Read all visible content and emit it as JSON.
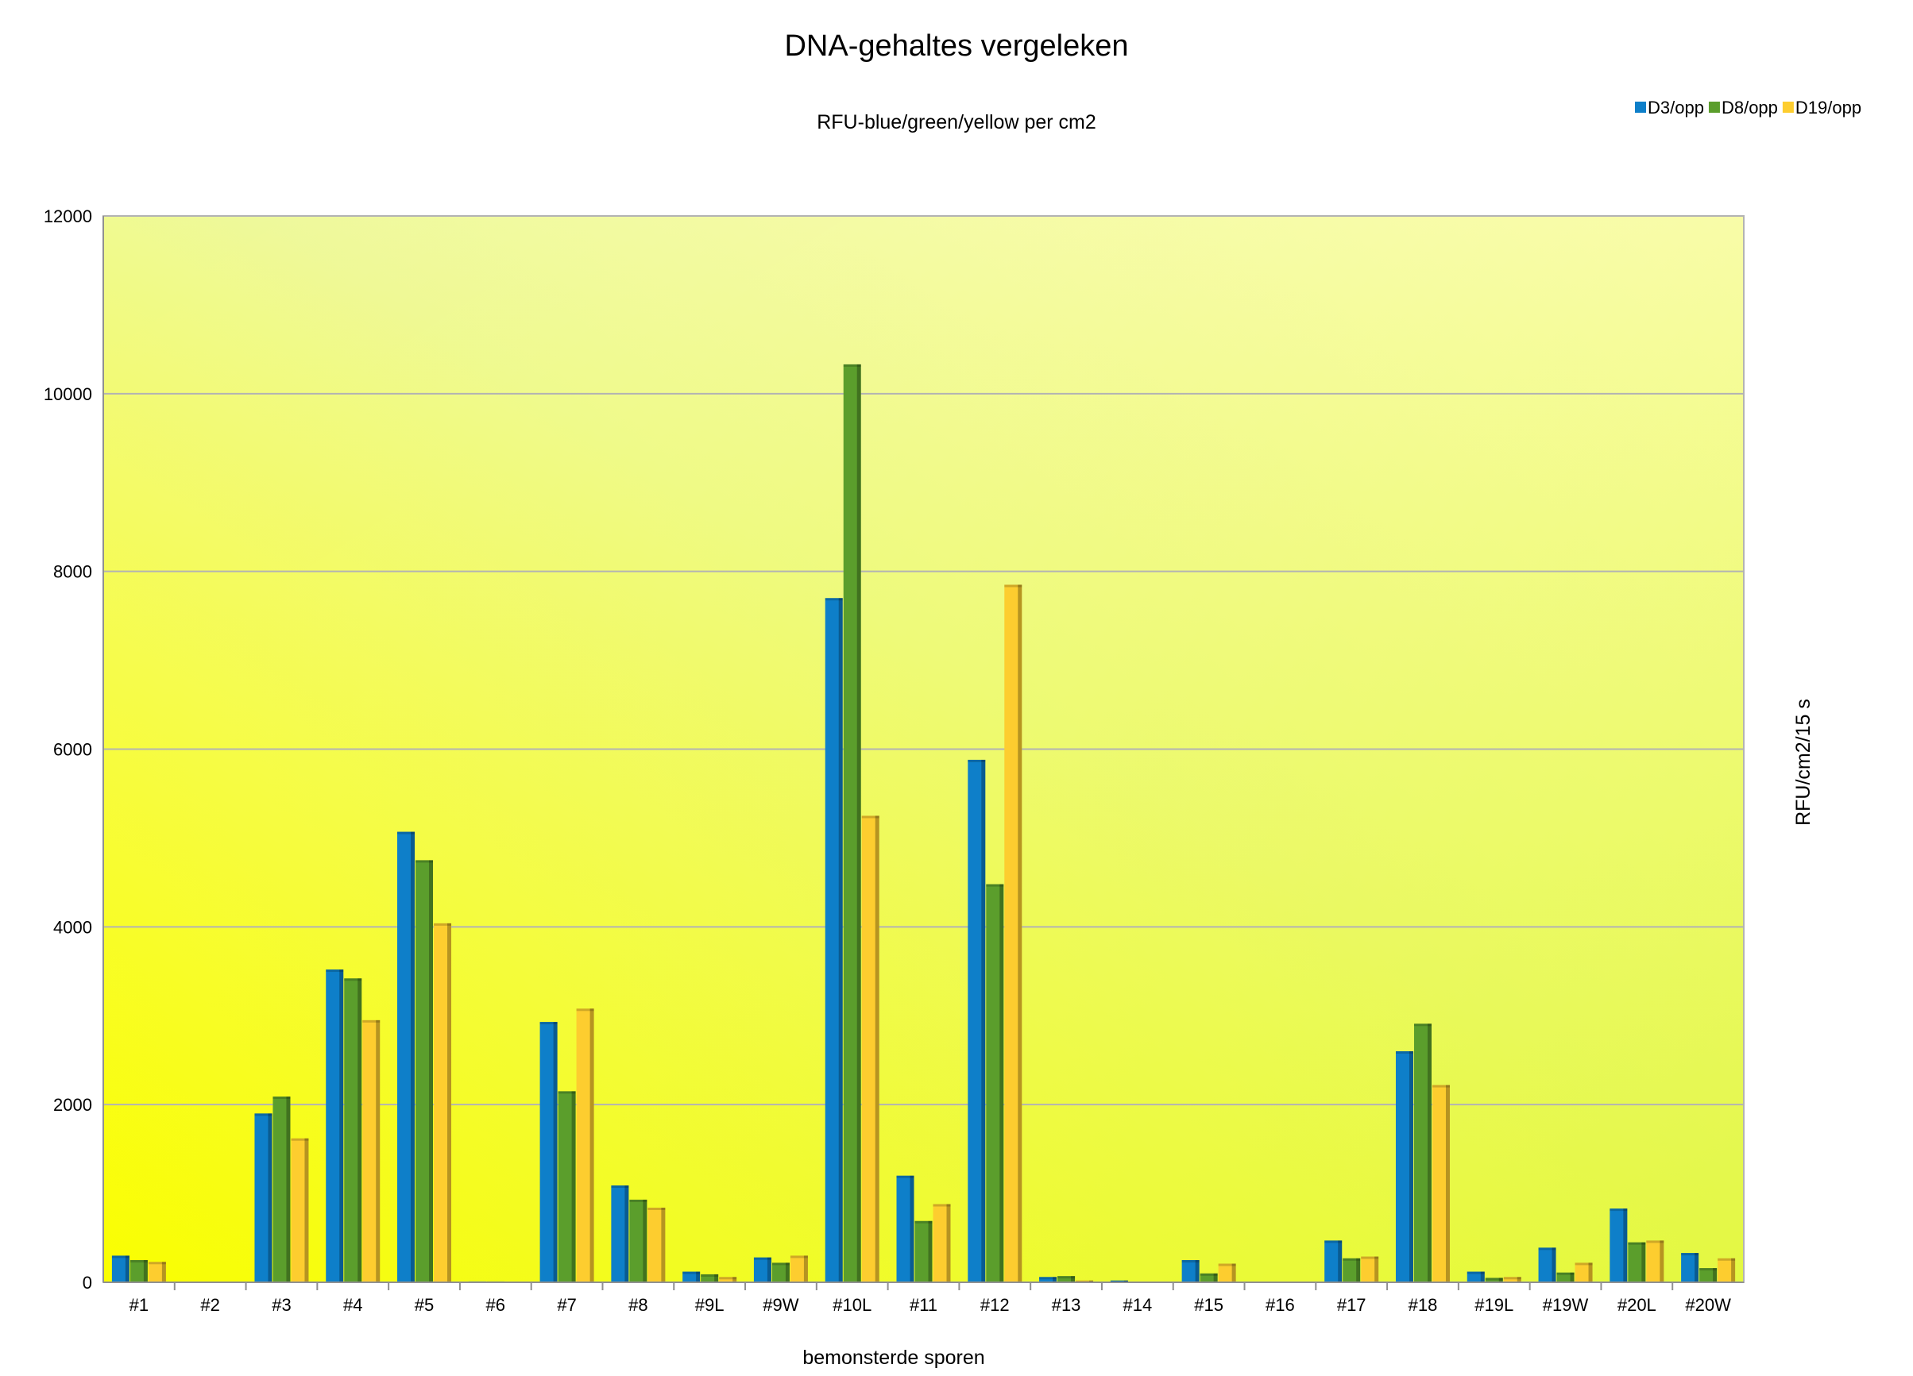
{
  "chart_data": {
    "type": "bar",
    "title": "DNA-gehaltes vergeleken",
    "subtitle": "RFU-blue/green/yellow per cm2",
    "xlabel": "bemonsterde sporen",
    "ylabel": "RFU/cm2/15 s",
    "ylim": [
      0,
      12000
    ],
    "yticks": [
      0,
      2000,
      4000,
      6000,
      8000,
      10000,
      12000
    ],
    "grid": true,
    "legend_position": "top-right",
    "categories": [
      "#1",
      "#2",
      "#3",
      "#4",
      "#5",
      "#6",
      "#7",
      "#8",
      "#9L",
      "#9W",
      "#10L",
      "#11",
      "#12",
      "#13",
      "#14",
      "#15",
      "#16",
      "#17",
      "#18",
      "#19L",
      "#19W",
      "#20L",
      "#20W"
    ],
    "series": [
      {
        "name": "D3/opp",
        "color": "#0e7fc9",
        "values": [
          300,
          0,
          1900,
          3520,
          5070,
          10,
          2930,
          1090,
          120,
          280,
          7700,
          1200,
          5880,
          60,
          20,
          250,
          0,
          470,
          2600,
          120,
          390,
          830,
          330
        ]
      },
      {
        "name": "D8/opp",
        "color": "#5b9e2c",
        "values": [
          250,
          0,
          2090,
          3420,
          4750,
          10,
          2150,
          930,
          90,
          220,
          10330,
          690,
          4480,
          70,
          0,
          100,
          0,
          270,
          2910,
          50,
          110,
          450,
          160
        ]
      },
      {
        "name": "D19/opp",
        "color": "#fdcd2f",
        "values": [
          230,
          0,
          1620,
          2950,
          4040,
          0,
          3080,
          840,
          60,
          300,
          5250,
          880,
          7850,
          20,
          0,
          210,
          0,
          290,
          2220,
          60,
          220,
          470,
          270
        ]
      }
    ]
  }
}
